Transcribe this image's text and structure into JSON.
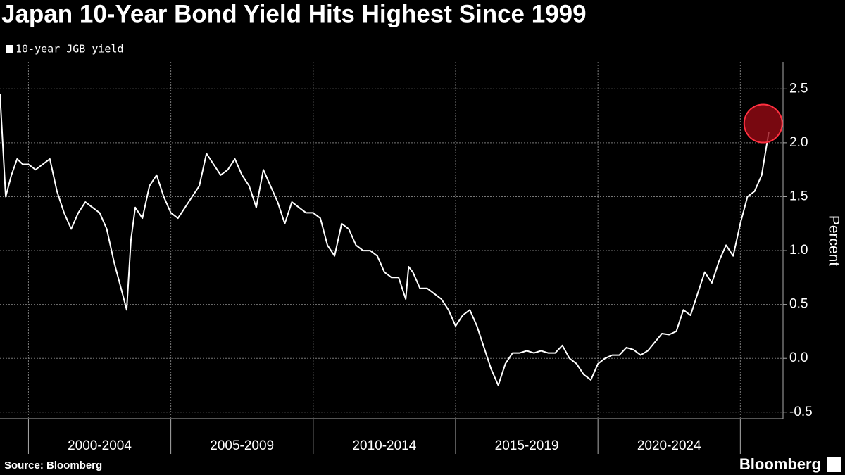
{
  "chart_data": {
    "type": "line",
    "title": "Japan 10-Year Bond Yield Hits Highest Since 1999",
    "y_label": "Percent",
    "source": "Source: Bloomberg",
    "brand": "Bloomberg",
    "categories": [
      "2000-2004",
      "2005-2009",
      "2010-2014",
      "2015-2019",
      "2020-2024"
    ],
    "xlim": [
      1999,
      2026.5
    ],
    "xticks": [
      2000,
      2005,
      2010,
      2015,
      2020,
      2025
    ],
    "ylim": [
      -0.56,
      2.75
    ],
    "yticks": [
      -0.5,
      {
        "value": 0,
        "label": "0.0"
      },
      0.5,
      {
        "value": 1,
        "label": "1.0"
      },
      1.5,
      {
        "value": 2,
        "label": "2.0"
      },
      2.5
    ],
    "grid": true,
    "legend": "top-left",
    "series": [
      {
        "name": "10-year JGB yield",
        "color": "#ffffff",
        "x": [
          1999.0,
          1999.2,
          1999.4,
          1999.6,
          1999.8,
          2000.0,
          2000.25,
          2000.5,
          2000.75,
          2001.0,
          2001.25,
          2001.5,
          2001.75,
          2002.0,
          2002.25,
          2002.5,
          2002.75,
          2003.0,
          2003.25,
          2003.45,
          2003.6,
          2003.75,
          2004.0,
          2004.25,
          2004.5,
          2004.75,
          2005.0,
          2005.25,
          2005.5,
          2005.75,
          2006.0,
          2006.25,
          2006.5,
          2006.75,
          2007.0,
          2007.25,
          2007.5,
          2007.75,
          2008.0,
          2008.25,
          2008.5,
          2008.75,
          2009.0,
          2009.25,
          2009.5,
          2009.75,
          2010.0,
          2010.25,
          2010.5,
          2010.75,
          2011.0,
          2011.25,
          2011.5,
          2011.75,
          2012.0,
          2012.25,
          2012.5,
          2012.75,
          2013.0,
          2013.25,
          2013.35,
          2013.5,
          2013.75,
          2014.0,
          2014.25,
          2014.5,
          2014.75,
          2015.0,
          2015.25,
          2015.5,
          2015.75,
          2016.0,
          2016.25,
          2016.5,
          2016.75,
          2017.0,
          2017.25,
          2017.5,
          2017.75,
          2018.0,
          2018.25,
          2018.5,
          2018.75,
          2019.0,
          2019.25,
          2019.5,
          2019.75,
          2020.0,
          2020.25,
          2020.5,
          2020.75,
          2021.0,
          2021.25,
          2021.5,
          2021.75,
          2022.0,
          2022.25,
          2022.5,
          2022.75,
          2023.0,
          2023.25,
          2023.5,
          2023.75,
          2024.0,
          2024.25,
          2024.5,
          2024.75,
          2025.0,
          2025.25,
          2025.5,
          2025.75,
          2026.0
        ],
        "values": [
          2.45,
          1.5,
          1.7,
          1.85,
          1.8,
          1.8,
          1.75,
          1.8,
          1.85,
          1.55,
          1.35,
          1.2,
          1.35,
          1.45,
          1.4,
          1.35,
          1.2,
          0.9,
          0.65,
          0.45,
          1.1,
          1.4,
          1.3,
          1.6,
          1.7,
          1.5,
          1.35,
          1.3,
          1.4,
          1.5,
          1.6,
          1.9,
          1.8,
          1.7,
          1.75,
          1.85,
          1.7,
          1.6,
          1.4,
          1.75,
          1.6,
          1.45,
          1.25,
          1.45,
          1.4,
          1.35,
          1.35,
          1.3,
          1.05,
          0.95,
          1.25,
          1.2,
          1.05,
          1.0,
          1.0,
          0.95,
          0.8,
          0.75,
          0.75,
          0.55,
          0.85,
          0.8,
          0.65,
          0.65,
          0.6,
          0.55,
          0.45,
          0.3,
          0.4,
          0.45,
          0.3,
          0.1,
          -0.1,
          -0.25,
          -0.05,
          0.05,
          0.05,
          0.07,
          0.05,
          0.07,
          0.05,
          0.05,
          0.12,
          0.0,
          -0.05,
          -0.15,
          -0.2,
          -0.05,
          0.0,
          0.03,
          0.03,
          0.1,
          0.08,
          0.03,
          0.07,
          0.15,
          0.23,
          0.22,
          0.25,
          0.45,
          0.4,
          0.6,
          0.8,
          0.7,
          0.9,
          1.05,
          0.95,
          1.25,
          1.5,
          1.55,
          1.7,
          2.1
        ]
      }
    ]
  }
}
